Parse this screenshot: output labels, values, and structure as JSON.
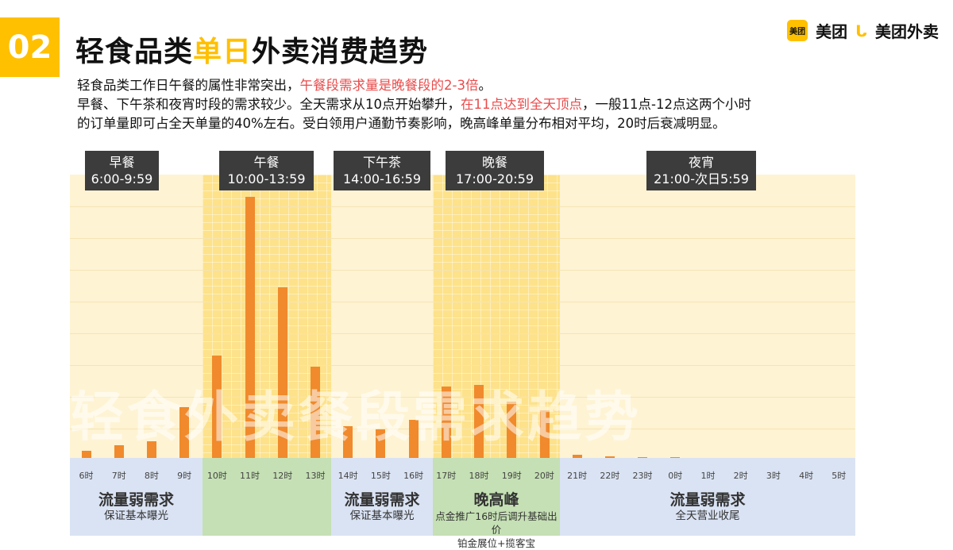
{
  "section_number": "02",
  "title": {
    "part1": "轻食品类",
    "highlight": "单日",
    "part2": "外卖消费趋势"
  },
  "logos": {
    "meituan_badge": "美团",
    "meituan": "美团",
    "waimai": "美团外卖"
  },
  "description": {
    "line1_a": "轻食品类工作日午餐的属性非常突出，",
    "line1_red": "午餐段需求量是晚餐段的2-3倍",
    "line1_b": "。",
    "line2_a": "早餐、下午茶和夜宵时段的需求较少。全天需求从10点开始攀升，",
    "line2_red": "在11点达到全天顶点",
    "line2_b": "，一般11点-12点这两个小时",
    "line3": "的订单量即可占全天单量的40%左右。受白领用户通勤节奏影响，晚高峰单量分布相对平均，20时后衰减明显。"
  },
  "periods": [
    {
      "name": "早餐",
      "time": "6:00-9:59"
    },
    {
      "name": "午餐",
      "time": "10:00-13:59"
    },
    {
      "name": "下午茶",
      "time": "14:00-16:59"
    },
    {
      "name": "晚餐",
      "time": "17:00-20:59"
    },
    {
      "name": "夜宵",
      "time": "21:00-次日5:59"
    }
  ],
  "watermark": "轻食外卖餐段需求趋势",
  "chart_data": {
    "type": "bar",
    "categories": [
      "6时",
      "7时",
      "8时",
      "9时",
      "10时",
      "11时",
      "12时",
      "13时",
      "14时",
      "15时",
      "16时",
      "17时",
      "18时",
      "19时",
      "20时",
      "21时",
      "22时",
      "23时",
      "0时",
      "1时",
      "2时",
      "3时",
      "4时",
      "5时"
    ],
    "values": [
      9,
      16,
      21,
      64,
      129,
      329,
      215,
      115,
      40,
      36,
      48,
      90,
      92,
      71,
      60,
      4,
      2,
      1,
      0.5,
      0,
      0,
      0,
      0,
      0
    ],
    "title": "",
    "xlabel": "",
    "ylabel": "",
    "grid": true
  },
  "sections": [
    {
      "heading": "流量弱需求",
      "sub": "保证基本曝光"
    },
    {
      "heading": "",
      "sub": ""
    },
    {
      "heading": "流量弱需求",
      "sub": "保证基本曝光"
    },
    {
      "heading": "晚高峰",
      "sub": "点金推广16时后调升基础出价",
      "sub2": "铂金展位+揽客宝"
    },
    {
      "heading": "流量弱需求",
      "sub": "全天营业收尾"
    }
  ],
  "colors": {
    "accent": "#ffc000",
    "bar": "#f08a2c",
    "highlight_text": "#e94b4b"
  }
}
